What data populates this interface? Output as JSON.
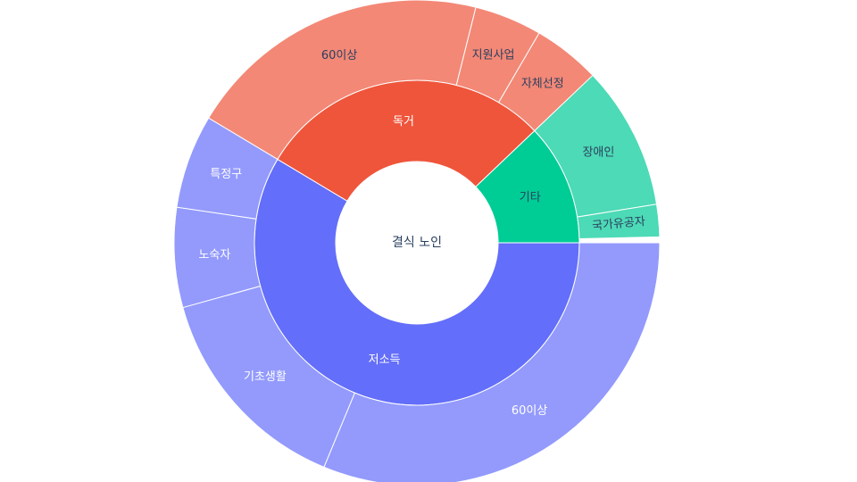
{
  "chart_data": {
    "type": "sunburst",
    "root": {
      "label": "결식 노인"
    },
    "children": [
      {
        "label": "저소득",
        "value": 15,
        "color": "#636efa",
        "children": [
          {
            "label": "60이상",
            "value": 8,
            "color": "#939afc",
            "label_color": "#ffffff"
          },
          {
            "label": "기초생활",
            "value": 3.7,
            "color": "#939afc",
            "label_color": "#ffffff"
          },
          {
            "label": "노숙자",
            "value": 1.7,
            "color": "#939afc",
            "label_color": "#ffffff"
          },
          {
            "label": "특정구",
            "value": 1.6,
            "color": "#939afc",
            "label_color": "#ffffff"
          }
        ]
      },
      {
        "label": "독거",
        "value": 7.5,
        "color": "#ef553b",
        "children": [
          {
            "label": "60이상",
            "value": 5.2,
            "color": "#f38876",
            "label_color": "#2a3f5f"
          },
          {
            "label": "지원사업",
            "value": 1.15,
            "color": "#f38876",
            "label_color": "#2a3f5f"
          },
          {
            "label": "자체선정",
            "value": 1.15,
            "color": "#f38876",
            "label_color": "#2a3f5f"
          }
        ]
      },
      {
        "label": "기타",
        "value": 3.1,
        "color": "#00cc96",
        "children": [
          {
            "label": "장애인",
            "value": 2.45,
            "color": "#4ddab6",
            "label_color": "#2a3f5f"
          },
          {
            "label": "국가유공자",
            "value": 0.55,
            "color": "#4ddab6",
            "label_color": "#2a3f5f"
          }
        ]
      }
    ]
  }
}
